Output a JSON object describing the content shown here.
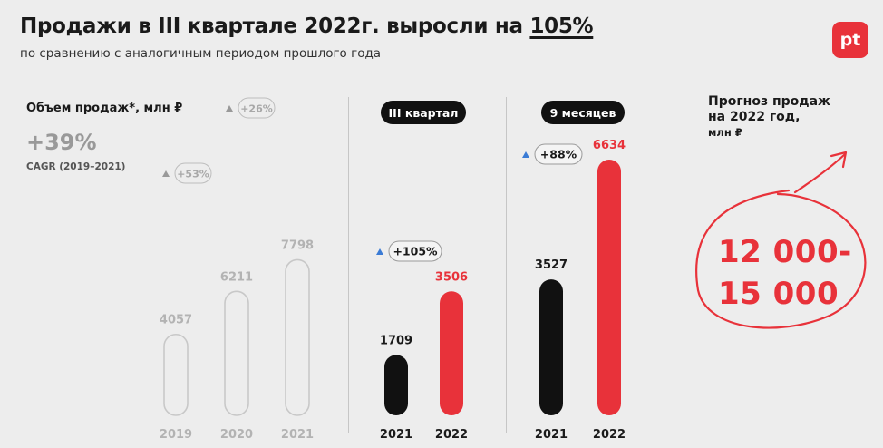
{
  "header": {
    "title_main": "Продажи в III квартале 2022г. выросли на ",
    "title_pct": "105%",
    "subtitle": "по сравнению с аналогичным периодом прошлого года",
    "logo": "pt",
    "brand_color": "#e8323a"
  },
  "annual": {
    "label": "Объем продаж*, млн ₽",
    "cagr_value": "+39%",
    "cagr_note": "CAGR (2019–2021)"
  },
  "q3": {
    "title": "III квартал"
  },
  "nine_months": {
    "title": "9 месяцев"
  },
  "forecast": {
    "title_line1": "Прогноз продаж",
    "title_line2": "на 2022 год,",
    "unit": "млн ₽",
    "range_line1": "12 000-",
    "range_line2": "15 000"
  },
  "chart_data": [
    {
      "type": "bar",
      "title": "Объем продаж*, млн ₽",
      "categories": [
        "2019",
        "2020",
        "2021"
      ],
      "values": [
        4057,
        6211,
        7798
      ],
      "value_labels": [
        "4057",
        "6211",
        "7798"
      ],
      "growth": [
        "+53%",
        "+26%"
      ],
      "style": "outline-grey"
    },
    {
      "type": "bar",
      "title": "III квартал",
      "categories": [
        "2021",
        "2022"
      ],
      "values": [
        1709,
        3506
      ],
      "value_labels": [
        "1709",
        "3506"
      ],
      "growth": [
        "+105%"
      ],
      "colors": [
        "#111111",
        "#e8323a"
      ]
    },
    {
      "type": "bar",
      "title": "9 месяцев",
      "categories": [
        "2021",
        "2022"
      ],
      "values": [
        3527,
        6634
      ],
      "value_labels": [
        "3527",
        "6634"
      ],
      "growth": [
        "+88%"
      ],
      "colors": [
        "#111111",
        "#e8323a"
      ]
    }
  ]
}
